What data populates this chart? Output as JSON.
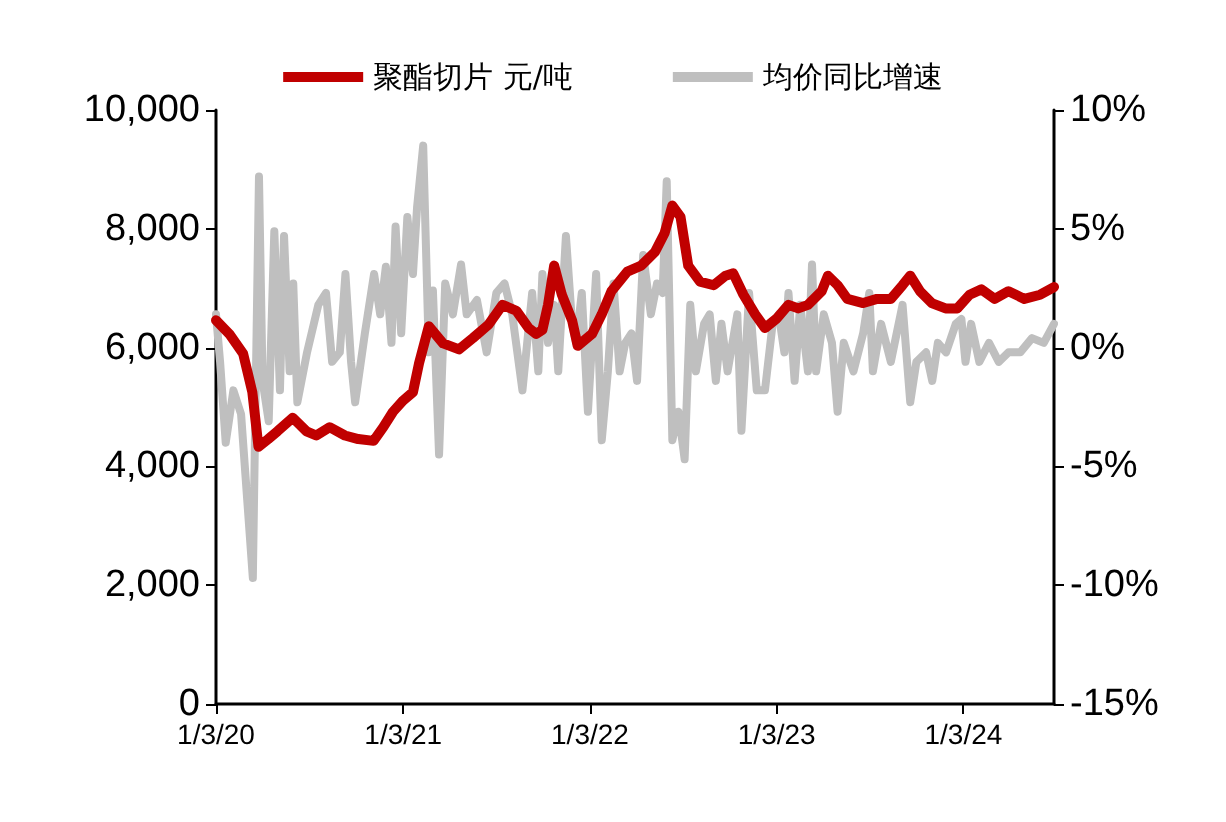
{
  "chart_data": {
    "type": "line",
    "legend": "top",
    "grid": false,
    "marker": "none",
    "line_style": "solid",
    "xlim": [
      "2020-01-03",
      "2024-06-28"
    ],
    "xticks": [
      {
        "value": "2020-01-03",
        "label": "1/3/20"
      },
      {
        "value": "2021-01-03",
        "label": "1/3/21"
      },
      {
        "value": "2022-01-03",
        "label": "1/3/22"
      },
      {
        "value": "2023-01-03",
        "label": "1/3/23"
      },
      {
        "value": "2024-01-03",
        "label": "1/3/24"
      }
    ],
    "ylim": [
      0,
      10000
    ],
    "yticks": [
      0,
      {
        "value": 2000,
        "label": "2,000"
      },
      {
        "value": 4000,
        "label": "4,000"
      },
      {
        "value": 6000,
        "label": "6,000"
      },
      {
        "value": 8000,
        "label": "8,000"
      },
      {
        "value": 10000,
        "label": "10,000"
      }
    ],
    "y2lim": [
      -15,
      10
    ],
    "y2ticks": [
      {
        "value": -15,
        "label": "-15%"
      },
      {
        "value": -10,
        "label": "-10%"
      },
      {
        "value": -5,
        "label": "-5%"
      },
      {
        "value": 0,
        "label": "0%"
      },
      {
        "value": 5,
        "label": "5%"
      },
      {
        "value": 10,
        "label": "10%"
      }
    ],
    "series": [
      {
        "name": "聚酯切片 元/吨",
        "color": "#c00000",
        "x": [
          "2020-01-03",
          "2020-01-29",
          "2020-02-25",
          "2020-03-14",
          "2020-03-26",
          "2020-04-14",
          "2020-05-02",
          "2020-06-01",
          "2020-06-28",
          "2020-07-17",
          "2020-08-12",
          "2020-09-11",
          "2020-10-07",
          "2020-11-06",
          "2020-11-25",
          "2020-12-14",
          "2021-01-03",
          "2021-01-22",
          "2021-02-03",
          "2021-02-22",
          "2021-03-22",
          "2021-04-22",
          "2021-05-19",
          "2021-06-19",
          "2021-07-16",
          "2021-08-12",
          "2021-09-05",
          "2021-09-20",
          "2021-10-02",
          "2021-10-13",
          "2021-10-25",
          "2021-11-09",
          "2021-11-29",
          "2021-12-10",
          "2022-01-07",
          "2022-01-26",
          "2022-02-14",
          "2022-03-17",
          "2022-04-13",
          "2022-05-10",
          "2022-05-29",
          "2022-06-13",
          "2022-06-29",
          "2022-07-14",
          "2022-08-06",
          "2022-09-02",
          "2022-09-25",
          "2022-10-10",
          "2022-10-30",
          "2022-11-22",
          "2022-12-11",
          "2023-01-03",
          "2023-01-26",
          "2023-02-14",
          "2023-03-05",
          "2023-04-01",
          "2023-04-13",
          "2023-05-02",
          "2023-05-21",
          "2023-06-21",
          "2023-07-18",
          "2023-08-14",
          "2023-09-06",
          "2023-09-21",
          "2023-10-10",
          "2023-11-02",
          "2023-11-29",
          "2023-12-22",
          "2024-01-15",
          "2024-02-07",
          "2024-03-04",
          "2024-03-31",
          "2024-05-01",
          "2024-06-01",
          "2024-06-28"
        ],
        "values": [
          6460,
          6230,
          5900,
          5250,
          4330,
          4460,
          4590,
          4820,
          4590,
          4520,
          4660,
          4520,
          4460,
          4430,
          4660,
          4920,
          5110,
          5250,
          5740,
          6360,
          6070,
          5970,
          6160,
          6390,
          6720,
          6620,
          6330,
          6230,
          6300,
          6720,
          7380,
          6890,
          6460,
          6030,
          6230,
          6560,
          6950,
          7280,
          7380,
          7610,
          7930,
          8390,
          8200,
          7380,
          7110,
          7050,
          7210,
          7250,
          6890,
          6560,
          6330,
          6490,
          6720,
          6660,
          6720,
          6950,
          7210,
          7050,
          6820,
          6750,
          6820,
          6820,
          7050,
          7210,
          6950,
          6750,
          6660,
          6660,
          6890,
          6980,
          6820,
          6950,
          6820,
          6890,
          7020
        ]
      },
      {
        "name": "均价同比增速",
        "color": "#bfbfbf",
        "axis": "y2",
        "x": [
          "2020-01-03",
          "2020-01-11",
          "2020-01-22",
          "2020-02-06",
          "2020-02-21",
          "2020-03-04",
          "2020-03-15",
          "2020-03-27",
          "2020-04-03",
          "2020-04-15",
          "2020-04-26",
          "2020-05-07",
          "2020-05-15",
          "2020-05-26",
          "2020-06-02",
          "2020-06-10",
          "2020-06-29",
          "2020-07-21",
          "2020-08-05",
          "2020-08-17",
          "2020-09-01",
          "2020-09-12",
          "2020-09-23",
          "2020-10-01",
          "2020-10-20",
          "2020-11-07",
          "2020-11-19",
          "2020-11-30",
          "2020-12-11",
          "2020-12-19",
          "2020-12-30",
          "2021-01-11",
          "2021-01-22",
          "2021-01-30",
          "2021-02-11",
          "2021-02-22",
          "2021-03-02",
          "2021-03-14",
          "2021-03-26",
          "2021-04-10",
          "2021-04-26",
          "2021-05-07",
          "2021-05-27",
          "2021-06-15",
          "2021-07-04",
          "2021-07-20",
          "2021-08-04",
          "2021-08-24",
          "2021-09-12",
          "2021-09-24",
          "2021-10-02",
          "2021-10-13",
          "2021-10-25",
          "2021-11-02",
          "2021-11-17",
          "2021-11-29",
          "2021-12-07",
          "2021-12-18",
          "2021-12-30",
          "2022-01-15",
          "2022-01-26",
          "2022-02-07",
          "2022-02-18",
          "2022-03-02",
          "2022-03-13",
          "2022-03-25",
          "2022-04-05",
          "2022-04-17",
          "2022-05-02",
          "2022-05-14",
          "2022-05-25",
          "2022-06-02",
          "2022-06-13",
          "2022-06-25",
          "2022-07-07",
          "2022-07-18",
          "2022-07-29",
          "2022-08-14",
          "2022-08-25",
          "2022-09-06",
          "2022-09-17",
          "2022-09-29",
          "2022-10-18",
          "2022-10-26",
          "2022-11-10",
          "2022-11-25",
          "2022-12-11",
          "2022-12-26",
          "2023-01-07",
          "2023-01-18",
          "2023-01-26",
          "2023-02-07",
          "2023-02-18",
          "2023-03-05",
          "2023-03-13",
          "2023-03-21",
          "2023-04-05",
          "2023-04-21",
          "2023-05-02",
          "2023-05-14",
          "2023-06-02",
          "2023-06-21",
          "2023-07-03",
          "2023-07-10",
          "2023-07-26",
          "2023-08-14",
          "2023-09-06",
          "2023-09-21",
          "2023-10-03",
          "2023-10-22",
          "2023-11-03",
          "2023-11-14",
          "2023-11-30",
          "2023-12-19",
          "2023-12-30",
          "2024-01-07",
          "2024-01-18",
          "2024-02-03",
          "2024-02-22",
          "2024-03-12",
          "2024-03-31",
          "2024-04-23",
          "2024-05-16",
          "2024-06-08",
          "2024-06-28"
        ],
        "values": [
          1.4,
          -0.6,
          -4.0,
          -1.8,
          -2.8,
          -6.4,
          -9.7,
          7.2,
          -1.4,
          -3.1,
          4.9,
          -1.8,
          4.7,
          -1.0,
          2.7,
          -2.3,
          -0.2,
          1.8,
          2.3,
          -0.6,
          -0.2,
          3.1,
          -0.6,
          -2.3,
          0.6,
          3.1,
          1.4,
          3.4,
          0.2,
          5.1,
          0.6,
          5.5,
          3.1,
          5.9,
          8.5,
          -0.2,
          2.4,
          -4.5,
          2.7,
          1.4,
          3.5,
          1.4,
          2.0,
          -0.2,
          2.3,
          2.7,
          1.4,
          -1.8,
          2.3,
          -1.0,
          3.1,
          0.2,
          1.8,
          -1.0,
          4.7,
          1.0,
          0.2,
          2.3,
          -2.7,
          3.1,
          -3.9,
          -1.0,
          2.7,
          -1.0,
          0.2,
          0.6,
          -1.4,
          3.9,
          1.4,
          2.7,
          2.3,
          7.0,
          -3.9,
          -2.7,
          -4.7,
          1.8,
          -1.0,
          1.0,
          1.4,
          -1.4,
          1.0,
          -1.0,
          1.4,
          -3.5,
          2.3,
          -1.8,
          -1.8,
          1.0,
          1.4,
          -0.2,
          2.3,
          -1.4,
          1.8,
          -1.0,
          3.5,
          -1.0,
          1.4,
          0.2,
          -2.7,
          0.2,
          -1.0,
          0.6,
          2.3,
          -1.0,
          1.0,
          -0.6,
          1.8,
          -2.3,
          -0.6,
          -0.2,
          -1.4,
          0.2,
          -0.2,
          1.0,
          1.2,
          -0.6,
          1.0,
          -0.6,
          0.2,
          -0.6,
          -0.2,
          -0.2,
          0.4,
          0.2,
          1.0
        ]
      }
    ]
  }
}
